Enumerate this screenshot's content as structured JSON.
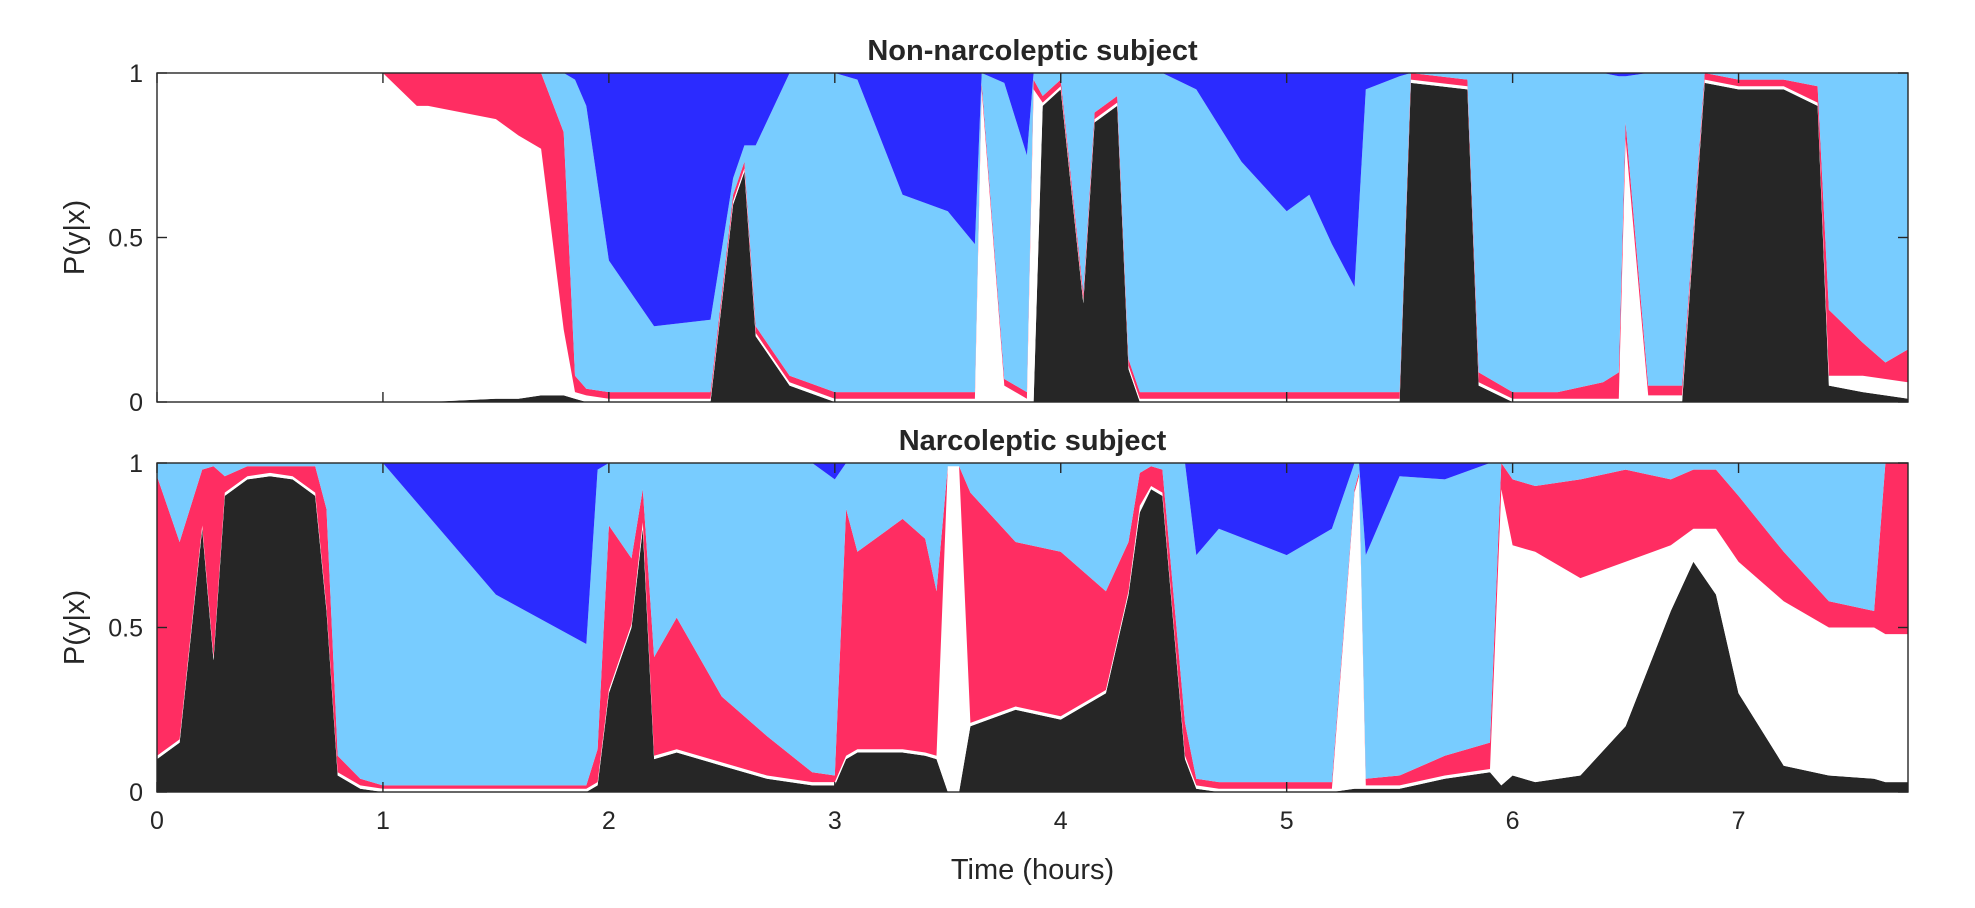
{
  "chart_data": [
    {
      "type": "area",
      "stacking": "stacked, sums to 1",
      "title": "Non-narcoleptic subject",
      "ylabel": "P(y|x)",
      "xlabel": "",
      "xlim": [
        0,
        7.75
      ],
      "ylim": [
        0,
        1
      ],
      "xticks": [
        0,
        1,
        2,
        3,
        4,
        5,
        6,
        7
      ],
      "xtick_labels": [],
      "yticks": [
        0,
        0.5,
        1
      ],
      "ytick_labels": [
        "0",
        "0.5",
        "1"
      ],
      "grid": false,
      "legend": "none",
      "x": [
        0,
        0.25,
        0.5,
        0.75,
        1.0,
        1.15,
        1.2,
        1.5,
        1.6,
        1.7,
        1.8,
        1.85,
        1.9,
        2.0,
        2.2,
        2.45,
        2.55,
        2.6,
        2.65,
        2.8,
        3.0,
        3.1,
        3.3,
        3.5,
        3.62,
        3.65,
        3.75,
        3.85,
        3.88,
        3.92,
        4.0,
        4.1,
        4.15,
        4.25,
        4.3,
        4.35,
        4.45,
        4.6,
        4.8,
        5.0,
        5.1,
        5.2,
        5.3,
        5.35,
        5.5,
        5.55,
        5.8,
        5.85,
        6.0,
        6.2,
        6.4,
        6.47,
        6.5,
        6.6,
        6.75,
        6.85,
        7.0,
        7.2,
        7.35,
        7.4,
        7.55,
        7.65,
        7.75
      ],
      "series": [
        {
          "color": "#262626",
          "values": [
            0,
            0,
            0,
            0,
            0,
            0,
            0,
            0.01,
            0.01,
            0.02,
            0.02,
            0.01,
            0,
            0,
            0,
            0,
            0.6,
            0.7,
            0.2,
            0.05,
            0,
            0,
            0,
            0,
            0,
            0,
            0,
            0,
            0,
            0.9,
            0.95,
            0.3,
            0.85,
            0.9,
            0.1,
            0,
            0,
            0,
            0,
            0,
            0,
            0,
            0,
            0,
            0,
            0.97,
            0.95,
            0.05,
            0,
            0,
            0,
            0,
            0,
            0,
            0,
            0.97,
            0.95,
            0.95,
            0.9,
            0.05,
            0.03,
            0.02,
            0.01
          ]
        },
        {
          "color": "#ffffff",
          "values": [
            1,
            1,
            1,
            1,
            1,
            0.9,
            0.9,
            0.85,
            0.8,
            0.75,
            0.2,
            0.02,
            0.02,
            0.01,
            0.01,
            0.01,
            0.01,
            0.01,
            0.01,
            0.01,
            0.01,
            0.01,
            0.01,
            0.01,
            0.01,
            0.95,
            0.05,
            0.01,
            0.95,
            0.01,
            0.01,
            0.01,
            0.01,
            0.01,
            0.01,
            0.01,
            0.01,
            0.01,
            0.01,
            0.01,
            0.01,
            0.01,
            0.01,
            0.01,
            0.01,
            0.01,
            0.01,
            0.01,
            0.01,
            0.01,
            0.01,
            0.01,
            0.8,
            0.02,
            0.02,
            0.01,
            0.01,
            0.01,
            0.01,
            0.03,
            0.05,
            0.05,
            0.05
          ]
        },
        {
          "color": "#ff2d62",
          "values": [
            0,
            0,
            0,
            0,
            0,
            0.1,
            0.1,
            0.14,
            0.19,
            0.23,
            0.6,
            0.05,
            0.02,
            0.02,
            0.02,
            0.02,
            0.02,
            0.02,
            0.02,
            0.02,
            0.02,
            0.02,
            0.02,
            0.02,
            0.02,
            0.02,
            0.02,
            0.02,
            0.03,
            0.02,
            0.02,
            0.02,
            0.02,
            0.02,
            0.02,
            0.02,
            0.02,
            0.02,
            0.02,
            0.02,
            0.02,
            0.02,
            0.02,
            0.02,
            0.02,
            0.02,
            0.02,
            0.03,
            0.02,
            0.02,
            0.05,
            0.08,
            0.05,
            0.03,
            0.03,
            0.02,
            0.02,
            0.02,
            0.05,
            0.2,
            0.1,
            0.05,
            0.1
          ]
        },
        {
          "color": "#78ccff",
          "values": [
            0,
            0,
            0,
            0,
            0,
            0,
            0,
            0,
            0,
            0,
            0.18,
            0.9,
            0.86,
            0.4,
            0.2,
            0.22,
            0.05,
            0.05,
            0.55,
            0.92,
            0.97,
            0.95,
            0.6,
            0.55,
            0.45,
            0.03,
            0.9,
            0.72,
            0.02,
            0.07,
            0.02,
            0.67,
            0.12,
            0.07,
            0.87,
            0.98,
            0.97,
            0.92,
            0.7,
            0.55,
            0.6,
            0.45,
            0.32,
            0.92,
            0.96,
            0,
            0.02,
            0.91,
            0.97,
            0.97,
            0.94,
            0.9,
            0.14,
            0.95,
            0.95,
            0,
            0.02,
            0.02,
            0.04,
            0.72,
            0.82,
            0.88,
            0.84
          ]
        },
        {
          "color": "#2b2bff",
          "values": [
            0,
            0,
            0,
            0,
            0,
            0,
            0,
            0,
            0,
            0,
            0,
            0.02,
            0.1,
            0.57,
            0.77,
            0.75,
            0.32,
            0.22,
            0.22,
            0,
            0,
            0.02,
            0.37,
            0.42,
            0.52,
            0,
            0.03,
            0.25,
            0,
            0,
            0,
            0,
            0,
            0,
            0,
            0,
            0,
            0.05,
            0.27,
            0.42,
            0.37,
            0.52,
            0.65,
            0.05,
            0.01,
            0,
            0,
            0,
            0,
            0,
            0,
            0.01,
            0.01,
            0,
            0,
            0,
            0,
            0,
            0,
            0,
            0,
            0,
            0
          ]
        }
      ]
    },
    {
      "type": "area",
      "stacking": "stacked, sums to 1",
      "title": "Narcoleptic subject",
      "ylabel": "P(y|x)",
      "xlabel": "Time (hours)",
      "xlim": [
        0,
        7.75
      ],
      "ylim": [
        0,
        1
      ],
      "xticks": [
        0,
        1,
        2,
        3,
        4,
        5,
        6,
        7
      ],
      "xtick_labels": [
        "0",
        "1",
        "2",
        "3",
        "4",
        "5",
        "6",
        "7"
      ],
      "yticks": [
        0,
        0.5,
        1
      ],
      "ytick_labels": [
        "0",
        "0.5",
        "1"
      ],
      "grid": false,
      "legend": "none",
      "x": [
        0,
        0.1,
        0.2,
        0.25,
        0.3,
        0.4,
        0.5,
        0.6,
        0.7,
        0.75,
        0.8,
        0.9,
        1.0,
        1.5,
        1.9,
        1.95,
        2.0,
        2.1,
        2.15,
        2.2,
        2.3,
        2.5,
        2.7,
        2.9,
        3.0,
        3.05,
        3.1,
        3.3,
        3.4,
        3.45,
        3.5,
        3.55,
        3.6,
        3.8,
        4.0,
        4.2,
        4.3,
        4.35,
        4.4,
        4.45,
        4.55,
        4.6,
        4.7,
        5.0,
        5.2,
        5.3,
        5.32,
        5.35,
        5.5,
        5.7,
        5.9,
        5.95,
        6.0,
        6.1,
        6.3,
        6.5,
        6.7,
        6.8,
        6.9,
        7.0,
        7.2,
        7.4,
        7.6,
        7.65,
        7.75
      ],
      "series": [
        {
          "color": "#262626",
          "values": [
            0.1,
            0.15,
            0.8,
            0.4,
            0.9,
            0.95,
            0.96,
            0.95,
            0.9,
            0.55,
            0.05,
            0.01,
            0,
            0,
            0,
            0.02,
            0.3,
            0.5,
            0.8,
            0.1,
            0.12,
            0.08,
            0.04,
            0.02,
            0.02,
            0.1,
            0.12,
            0.12,
            0.11,
            0.1,
            0,
            0,
            0.2,
            0.25,
            0.22,
            0.3,
            0.6,
            0.85,
            0.92,
            0.9,
            0.1,
            0.01,
            0,
            0,
            0,
            0.01,
            0.01,
            0.01,
            0.01,
            0.04,
            0.06,
            0.02,
            0.05,
            0.03,
            0.05,
            0.2,
            0.55,
            0.7,
            0.6,
            0.3,
            0.08,
            0.05,
            0.04,
            0.03,
            0.03
          ]
        },
        {
          "color": "#ffffff",
          "values": [
            0.01,
            0.01,
            0.01,
            0.01,
            0.01,
            0.01,
            0.01,
            0.01,
            0.01,
            0.01,
            0.01,
            0.01,
            0.01,
            0.01,
            0.01,
            0.01,
            0.01,
            0.01,
            0.02,
            0.01,
            0.01,
            0.01,
            0.01,
            0.01,
            0.01,
            0.01,
            0.01,
            0.01,
            0.01,
            0.01,
            0.99,
            0.99,
            0.01,
            0.01,
            0.01,
            0.01,
            0.01,
            0.02,
            0.01,
            0.01,
            0.01,
            0.01,
            0.01,
            0.01,
            0.01,
            0.9,
            0.95,
            0.01,
            0.01,
            0.01,
            0.01,
            0.9,
            0.7,
            0.7,
            0.6,
            0.5,
            0.2,
            0.1,
            0.2,
            0.4,
            0.5,
            0.45,
            0.46,
            0.45,
            0.45
          ]
        },
        {
          "color": "#ff2d62",
          "values": [
            0.85,
            0.6,
            0.17,
            0.58,
            0.05,
            0.03,
            0.02,
            0.03,
            0.08,
            0.3,
            0.05,
            0.02,
            0.01,
            0.01,
            0.01,
            0.1,
            0.5,
            0.2,
            0.1,
            0.3,
            0.4,
            0.2,
            0.12,
            0.03,
            0.02,
            0.75,
            0.6,
            0.7,
            0.65,
            0.5,
            0,
            0,
            0.7,
            0.5,
            0.5,
            0.3,
            0.15,
            0.1,
            0.06,
            0.07,
            0.1,
            0.02,
            0.02,
            0.02,
            0.02,
            0.01,
            0.01,
            0.02,
            0.03,
            0.06,
            0.08,
            0.08,
            0.2,
            0.2,
            0.3,
            0.28,
            0.2,
            0.18,
            0.18,
            0.2,
            0.15,
            0.08,
            0.05,
            0.52,
            0.52
          ]
        },
        {
          "color": "#78ccff",
          "values": [
            0.04,
            0.24,
            0.02,
            0.01,
            0.04,
            0.01,
            0.01,
            0.01,
            0.01,
            0.14,
            0.89,
            0.96,
            0.98,
            0.58,
            0.43,
            0.85,
            0.19,
            0.29,
            0.08,
            0.59,
            0.47,
            0.71,
            0.83,
            0.94,
            0.9,
            0.14,
            0.27,
            0.17,
            0.23,
            0.39,
            0.01,
            0.01,
            0.09,
            0.24,
            0.27,
            0.39,
            0.24,
            0.03,
            0.01,
            0.02,
            0.79,
            0.68,
            0.77,
            0.69,
            0.77,
            0.08,
            0.03,
            0.68,
            0.91,
            0.84,
            0.85,
            0,
            0.05,
            0.07,
            0.05,
            0.02,
            0.05,
            0.02,
            0.02,
            0.1,
            0.27,
            0.42,
            0.45,
            0,
            0
          ]
        },
        {
          "color": "#2b2bff",
          "values": [
            0,
            0,
            0,
            0,
            0,
            0,
            0,
            0,
            0,
            0,
            0,
            0,
            0,
            0.4,
            0.55,
            0.02,
            0,
            0,
            0,
            0,
            0,
            0,
            0,
            0,
            0.05,
            0,
            0,
            0,
            0,
            0,
            0,
            0,
            0,
            0,
            0,
            0,
            0,
            0,
            0,
            0,
            0,
            0.28,
            0.2,
            0.28,
            0.2,
            0,
            0,
            0.28,
            0.05,
            0.05,
            0,
            0,
            0,
            0,
            0,
            0,
            0,
            0,
            0,
            0,
            0,
            0,
            0,
            0,
            0
          ]
        }
      ]
    }
  ]
}
